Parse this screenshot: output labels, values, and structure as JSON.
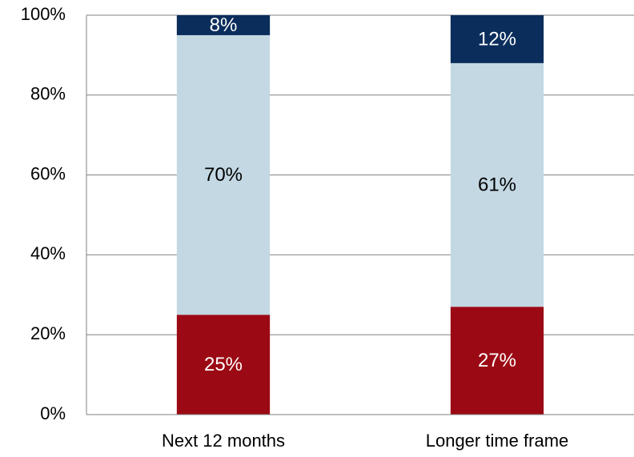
{
  "chart_data": {
    "type": "bar",
    "stacked": true,
    "categories": [
      "Next 12 months",
      "Longer time frame"
    ],
    "series": [
      {
        "values": [
          25,
          27
        ],
        "labels": [
          "25%",
          "27%"
        ],
        "color": "#9b0a14",
        "label_color": "#ffffff"
      },
      {
        "values": [
          70,
          61
        ],
        "labels": [
          "70%",
          "61%"
        ],
        "color": "#c3d8e3",
        "label_color": "#000000"
      },
      {
        "values": [
          8,
          12
        ],
        "labels": [
          "8%",
          "12%"
        ],
        "color": "#0a2d5c",
        "label_color": "#ffffff"
      }
    ],
    "yticks": [
      "0%",
      "20%",
      "40%",
      "60%",
      "80%",
      "100%"
    ],
    "ylim": [
      0,
      100
    ],
    "grid": true,
    "legend": "none",
    "title": "",
    "xlabel": "",
    "ylabel": ""
  }
}
